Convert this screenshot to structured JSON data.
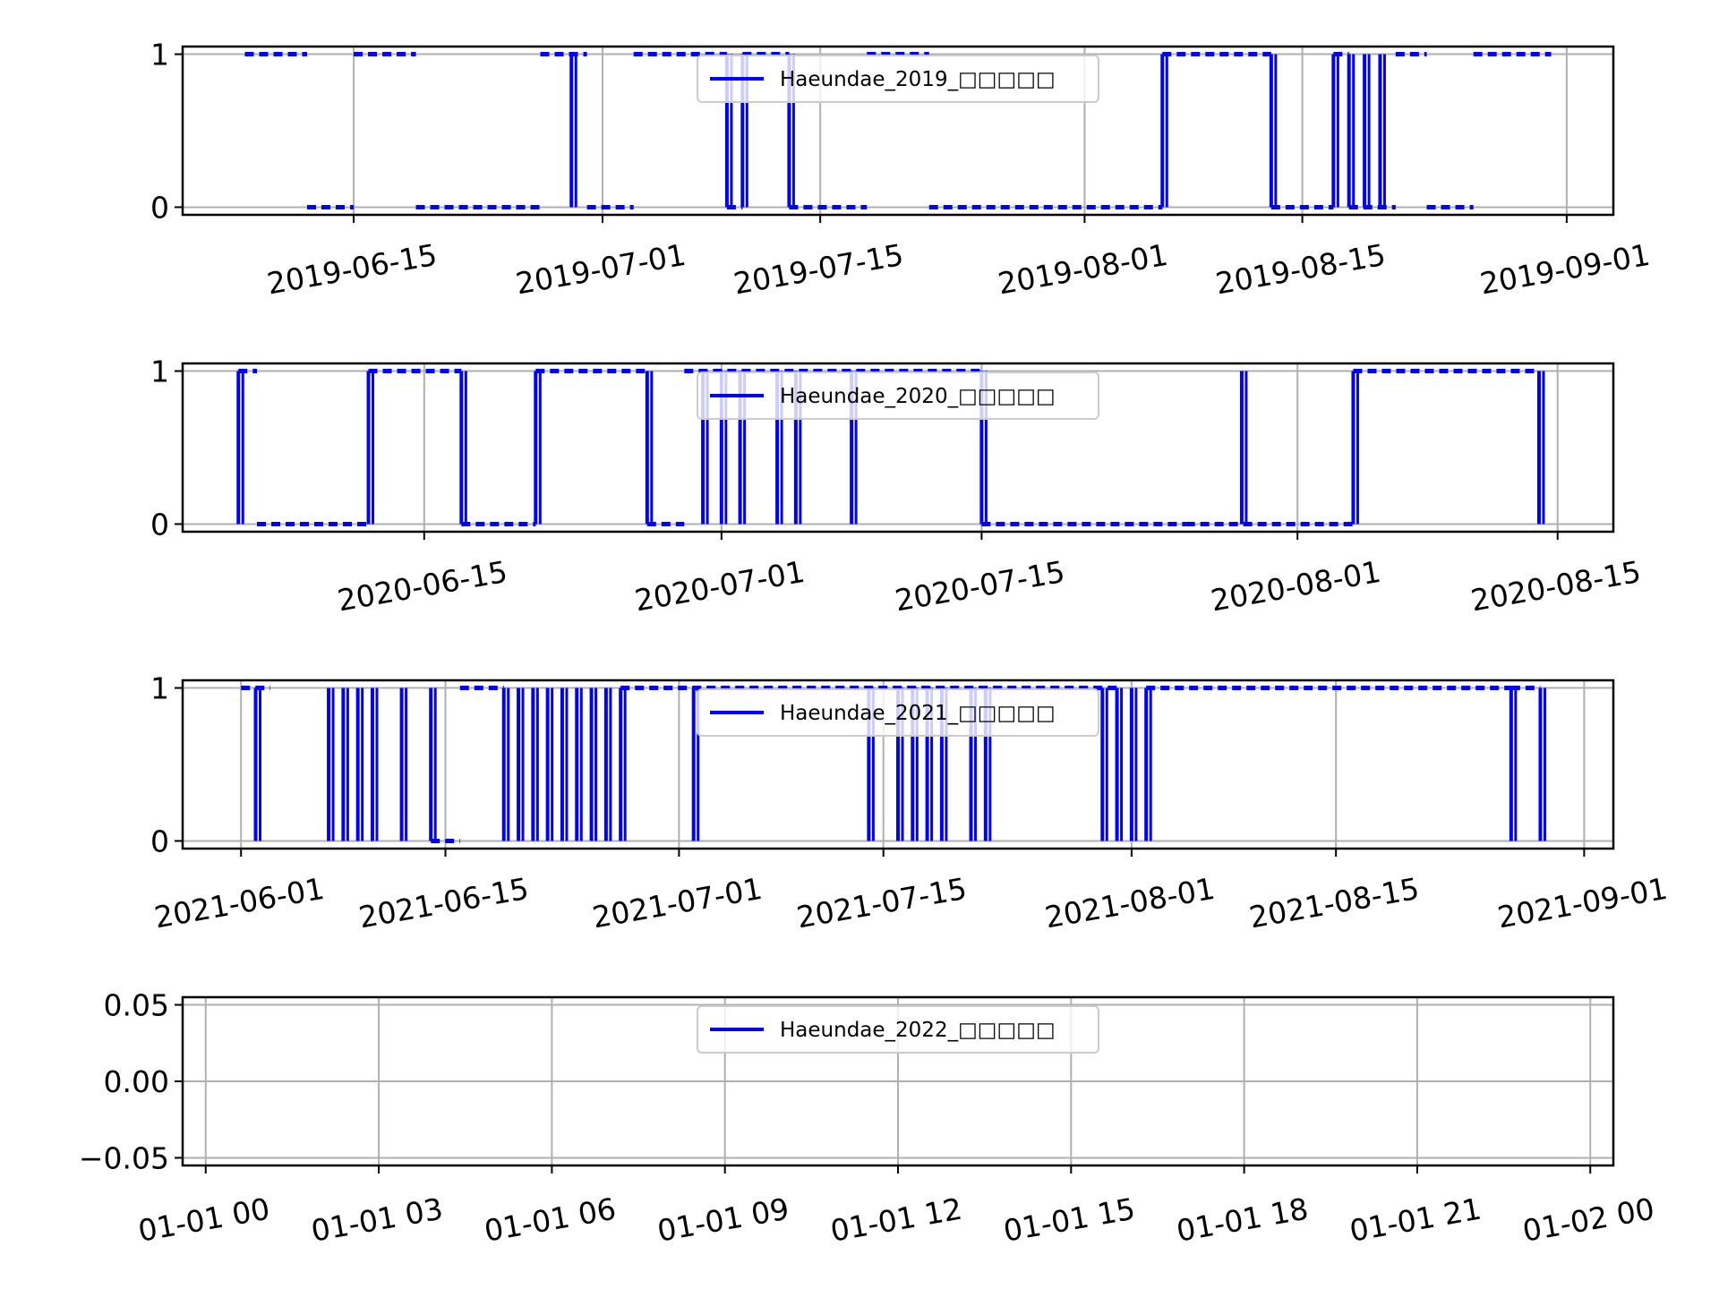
{
  "colors": {
    "series": "#0000ff",
    "grid": "#b0b0b0",
    "axis": "#000000",
    "legend_border": "#cccccc"
  },
  "chart_data": [
    {
      "type": "line",
      "legend_label": "Haeundae_2019_□□□□□",
      "legend_position": "upper center",
      "grid": true,
      "x_axis": "date",
      "xlim": [
        "2019-06-04",
        "2019-09-04"
      ],
      "ylim": [
        -0.05,
        1.05
      ],
      "yticks": [
        0,
        1
      ],
      "ytick_labels": [
        "0",
        "1"
      ],
      "xticks": [
        "2019-06-15",
        "2019-07-01",
        "2019-07-15",
        "2019-08-01",
        "2019-08-15",
        "2019-09-01"
      ],
      "xtick_labels": [
        "2019-06-15",
        "2019-07-01",
        "2019-07-15",
        "2019-08-01",
        "2019-08-15",
        "2019-09-01"
      ],
      "series": [
        {
          "segments": [
            {
              "x": [
                "2019-06-08",
                "2019-06-12"
              ],
              "y": 1
            },
            {
              "x": [
                "2019-06-12",
                "2019-06-15"
              ],
              "y": 0
            },
            {
              "x": [
                "2019-06-15",
                "2019-06-19"
              ],
              "y": 1
            },
            {
              "x": [
                "2019-06-19",
                "2019-06-27"
              ],
              "y": 0
            },
            {
              "x": [
                "2019-06-27",
                "2019-06-30"
              ],
              "y": 1
            },
            {
              "x": [
                "2019-06-30",
                "2019-07-03"
              ],
              "y": 0
            },
            {
              "x": [
                "2019-07-03",
                "2019-07-09"
              ],
              "y": 1
            },
            {
              "x": [
                "2019-07-09",
                "2019-07-10"
              ],
              "y": 0
            },
            {
              "x": [
                "2019-07-10",
                "2019-07-13"
              ],
              "y": 1
            },
            {
              "x": [
                "2019-07-13",
                "2019-07-18"
              ],
              "y": 0
            },
            {
              "x": [
                "2019-07-18",
                "2019-07-22"
              ],
              "y": 1
            },
            {
              "x": [
                "2019-07-22",
                "2019-08-06"
              ],
              "y": 0
            },
            {
              "x": [
                "2019-08-06",
                "2019-08-13"
              ],
              "y": 1
            },
            {
              "x": [
                "2019-08-13",
                "2019-08-17"
              ],
              "y": 0
            },
            {
              "x": [
                "2019-08-17",
                "2019-08-18"
              ],
              "y": 1
            },
            {
              "x": [
                "2019-08-18",
                "2019-08-21"
              ],
              "y": 0
            },
            {
              "x": [
                "2019-08-21",
                "2019-08-23"
              ],
              "y": 1
            },
            {
              "x": [
                "2019-08-23",
                "2019-08-26"
              ],
              "y": 0
            },
            {
              "x": [
                "2019-08-26",
                "2019-08-31"
              ],
              "y": 1
            }
          ],
          "transitions": [
            "2019-06-29",
            "2019-07-09",
            "2019-07-10",
            "2019-07-13",
            "2019-08-06",
            "2019-08-13",
            "2019-08-17",
            "2019-08-18",
            "2019-08-19",
            "2019-08-20"
          ]
        }
      ]
    },
    {
      "type": "line",
      "legend_label": "Haeundae_2020_□□□□□",
      "legend_position": "upper center",
      "grid": true,
      "x_axis": "date",
      "xlim": [
        "2020-06-02",
        "2020-08-18"
      ],
      "ylim": [
        -0.05,
        1.05
      ],
      "yticks": [
        0,
        1
      ],
      "ytick_labels": [
        "0",
        "1"
      ],
      "xticks": [
        "2020-06-15",
        "2020-07-01",
        "2020-07-15",
        "2020-08-01",
        "2020-08-15"
      ],
      "xtick_labels": [
        "2020-06-15",
        "2020-07-01",
        "2020-07-15",
        "2020-08-01",
        "2020-08-15"
      ],
      "series": [
        {
          "segments": [
            {
              "x": [
                "2020-06-05",
                "2020-06-06"
              ],
              "y": 1
            },
            {
              "x": [
                "2020-06-06",
                "2020-06-12"
              ],
              "y": 0
            },
            {
              "x": [
                "2020-06-12",
                "2020-06-17"
              ],
              "y": 1
            },
            {
              "x": [
                "2020-06-17",
                "2020-06-21"
              ],
              "y": 0
            },
            {
              "x": [
                "2020-06-21",
                "2020-06-27"
              ],
              "y": 1
            },
            {
              "x": [
                "2020-06-27",
                "2020-06-29"
              ],
              "y": 0
            },
            {
              "x": [
                "2020-06-29",
                "2020-07-15"
              ],
              "y": 1
            },
            {
              "x": [
                "2020-07-15",
                "2020-07-26"
              ],
              "y": 0
            },
            {
              "x": [
                "2020-07-26",
                "2020-08-04"
              ],
              "y": 0
            },
            {
              "x": [
                "2020-08-04",
                "2020-08-14"
              ],
              "y": 1
            }
          ],
          "transitions": [
            "2020-06-05",
            "2020-06-12",
            "2020-06-17",
            "2020-06-21",
            "2020-06-27",
            "2020-06-30",
            "2020-07-01",
            "2020-07-02",
            "2020-07-04",
            "2020-07-05",
            "2020-07-08",
            "2020-07-15",
            "2020-07-29",
            "2020-08-04",
            "2020-08-14"
          ]
        }
      ]
    },
    {
      "type": "line",
      "legend_label": "Haeundae_2021_□□□□□",
      "legend_position": "upper center",
      "grid": true,
      "x_axis": "date",
      "xlim": [
        "2021-05-28",
        "2021-09-03"
      ],
      "ylim": [
        -0.05,
        1.05
      ],
      "yticks": [
        0,
        1
      ],
      "ytick_labels": [
        "0",
        "1"
      ],
      "xticks": [
        "2021-06-01",
        "2021-06-15",
        "2021-07-01",
        "2021-07-15",
        "2021-08-01",
        "2021-08-15",
        "2021-09-01"
      ],
      "xtick_labels": [
        "2021-06-01",
        "2021-06-15",
        "2021-07-01",
        "2021-07-15",
        "2021-08-01",
        "2021-08-15",
        "2021-09-01"
      ],
      "series": [
        {
          "segments": [
            {
              "x": [
                "2021-06-01",
                "2021-06-03"
              ],
              "y": 1
            },
            {
              "x": [
                "2021-06-14",
                "2021-06-16"
              ],
              "y": 0
            },
            {
              "x": [
                "2021-06-16",
                "2021-06-19"
              ],
              "y": 1
            },
            {
              "x": [
                "2021-06-27",
                "2021-07-31"
              ],
              "y": 1
            },
            {
              "x": [
                "2021-08-02",
                "2021-08-27"
              ],
              "y": 1
            },
            {
              "x": [
                "2021-08-27",
                "2021-08-29"
              ],
              "y": 1
            }
          ],
          "transitions": [
            "2021-06-02",
            "2021-06-07",
            "2021-06-08",
            "2021-06-09",
            "2021-06-10",
            "2021-06-12",
            "2021-06-14",
            "2021-06-19",
            "2021-06-20",
            "2021-06-21",
            "2021-06-22",
            "2021-06-23",
            "2021-06-24",
            "2021-06-25",
            "2021-06-26",
            "2021-06-27",
            "2021-07-02",
            "2021-07-14",
            "2021-07-16",
            "2021-07-17",
            "2021-07-18",
            "2021-07-19",
            "2021-07-21",
            "2021-07-22",
            "2021-07-30",
            "2021-07-31",
            "2021-08-01",
            "2021-08-02",
            "2021-08-27",
            "2021-08-29"
          ]
        }
      ]
    },
    {
      "type": "line",
      "legend_label": "Haeundae_2022_□□□□□",
      "legend_position": "upper center",
      "grid": true,
      "x_axis": "datetime",
      "xlim": [
        -0.4,
        24.4
      ],
      "ylim": [
        -0.055,
        0.055
      ],
      "yticks": [
        -0.05,
        0.0,
        0.05
      ],
      "ytick_labels": [
        "−0.05",
        "0.00",
        "0.05"
      ],
      "xticks": [
        0,
        3,
        6,
        9,
        12,
        15,
        18,
        21,
        24
      ],
      "xtick_labels": [
        "01-01 00",
        "01-01 03",
        "01-01 06",
        "01-01 09",
        "01-01 12",
        "01-01 15",
        "01-01 18",
        "01-01 21",
        "01-02 00"
      ],
      "series": [
        {
          "segments": [],
          "transitions": []
        }
      ]
    }
  ]
}
